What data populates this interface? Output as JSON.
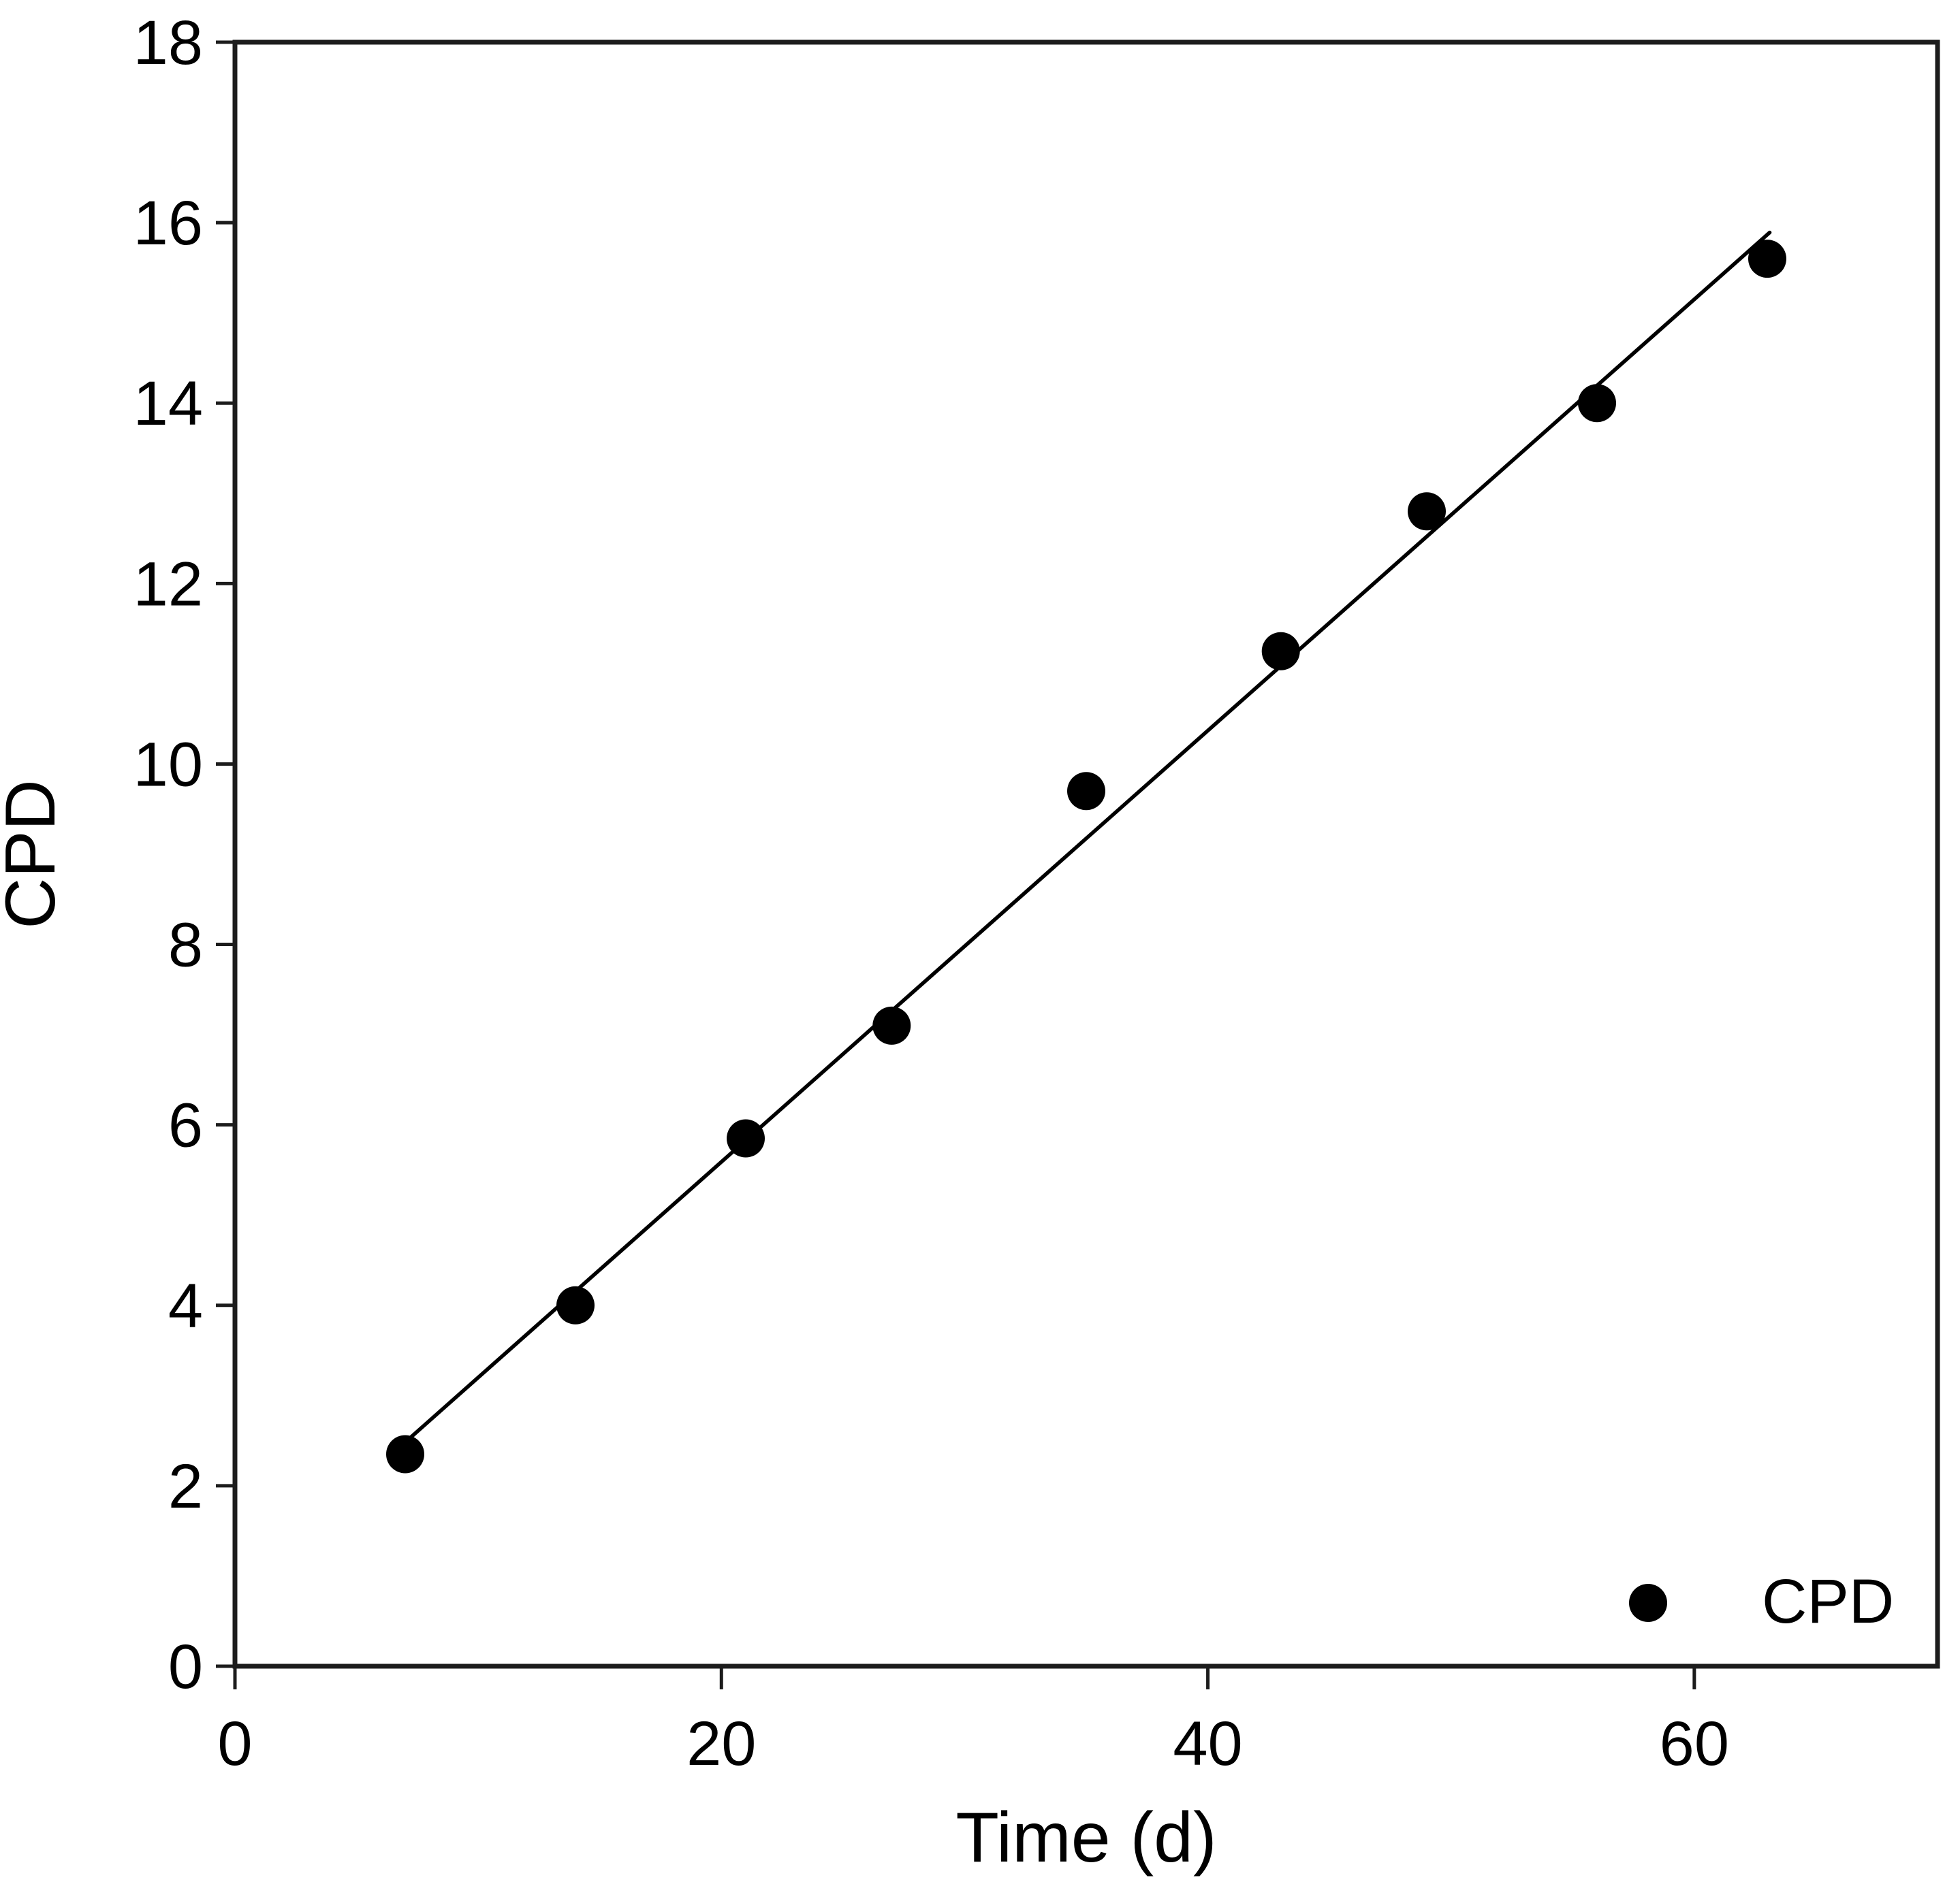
{
  "figure": {
    "background": "#ffffff",
    "foreground": "#000000",
    "axis_color": "#1c1c1c"
  },
  "chart_data": {
    "type": "scatter",
    "title": "",
    "xlabel": "Time (d)",
    "ylabel": "CPD",
    "xlim": [
      0,
      70
    ],
    "ylim": [
      0,
      18
    ],
    "xticks": [
      0,
      20,
      40,
      60
    ],
    "yticks": [
      0,
      2,
      4,
      6,
      8,
      10,
      12,
      14,
      16,
      18
    ],
    "grid": false,
    "series": [
      {
        "name": "CPD",
        "marker": "filled-circle",
        "color": "#000000",
        "points": [
          {
            "x": 7,
            "y": 2.35
          },
          {
            "x": 14,
            "y": 4.0
          },
          {
            "x": 21,
            "y": 5.85
          },
          {
            "x": 27,
            "y": 7.1
          },
          {
            "x": 35,
            "y": 9.7
          },
          {
            "x": 43,
            "y": 11.25
          },
          {
            "x": 49,
            "y": 12.8
          },
          {
            "x": 56,
            "y": 14.0
          },
          {
            "x": 63,
            "y": 15.6
          }
        ]
      }
    ],
    "fit_line": {
      "slope": 0.239,
      "intercept": 0.81,
      "x_start": 6.9,
      "x_end": 63.1,
      "color": "#000000"
    },
    "legend": {
      "position": "bottom-right",
      "entries": [
        {
          "label": "CPD",
          "marker": "filled-circle",
          "color": "#000000"
        }
      ]
    }
  }
}
